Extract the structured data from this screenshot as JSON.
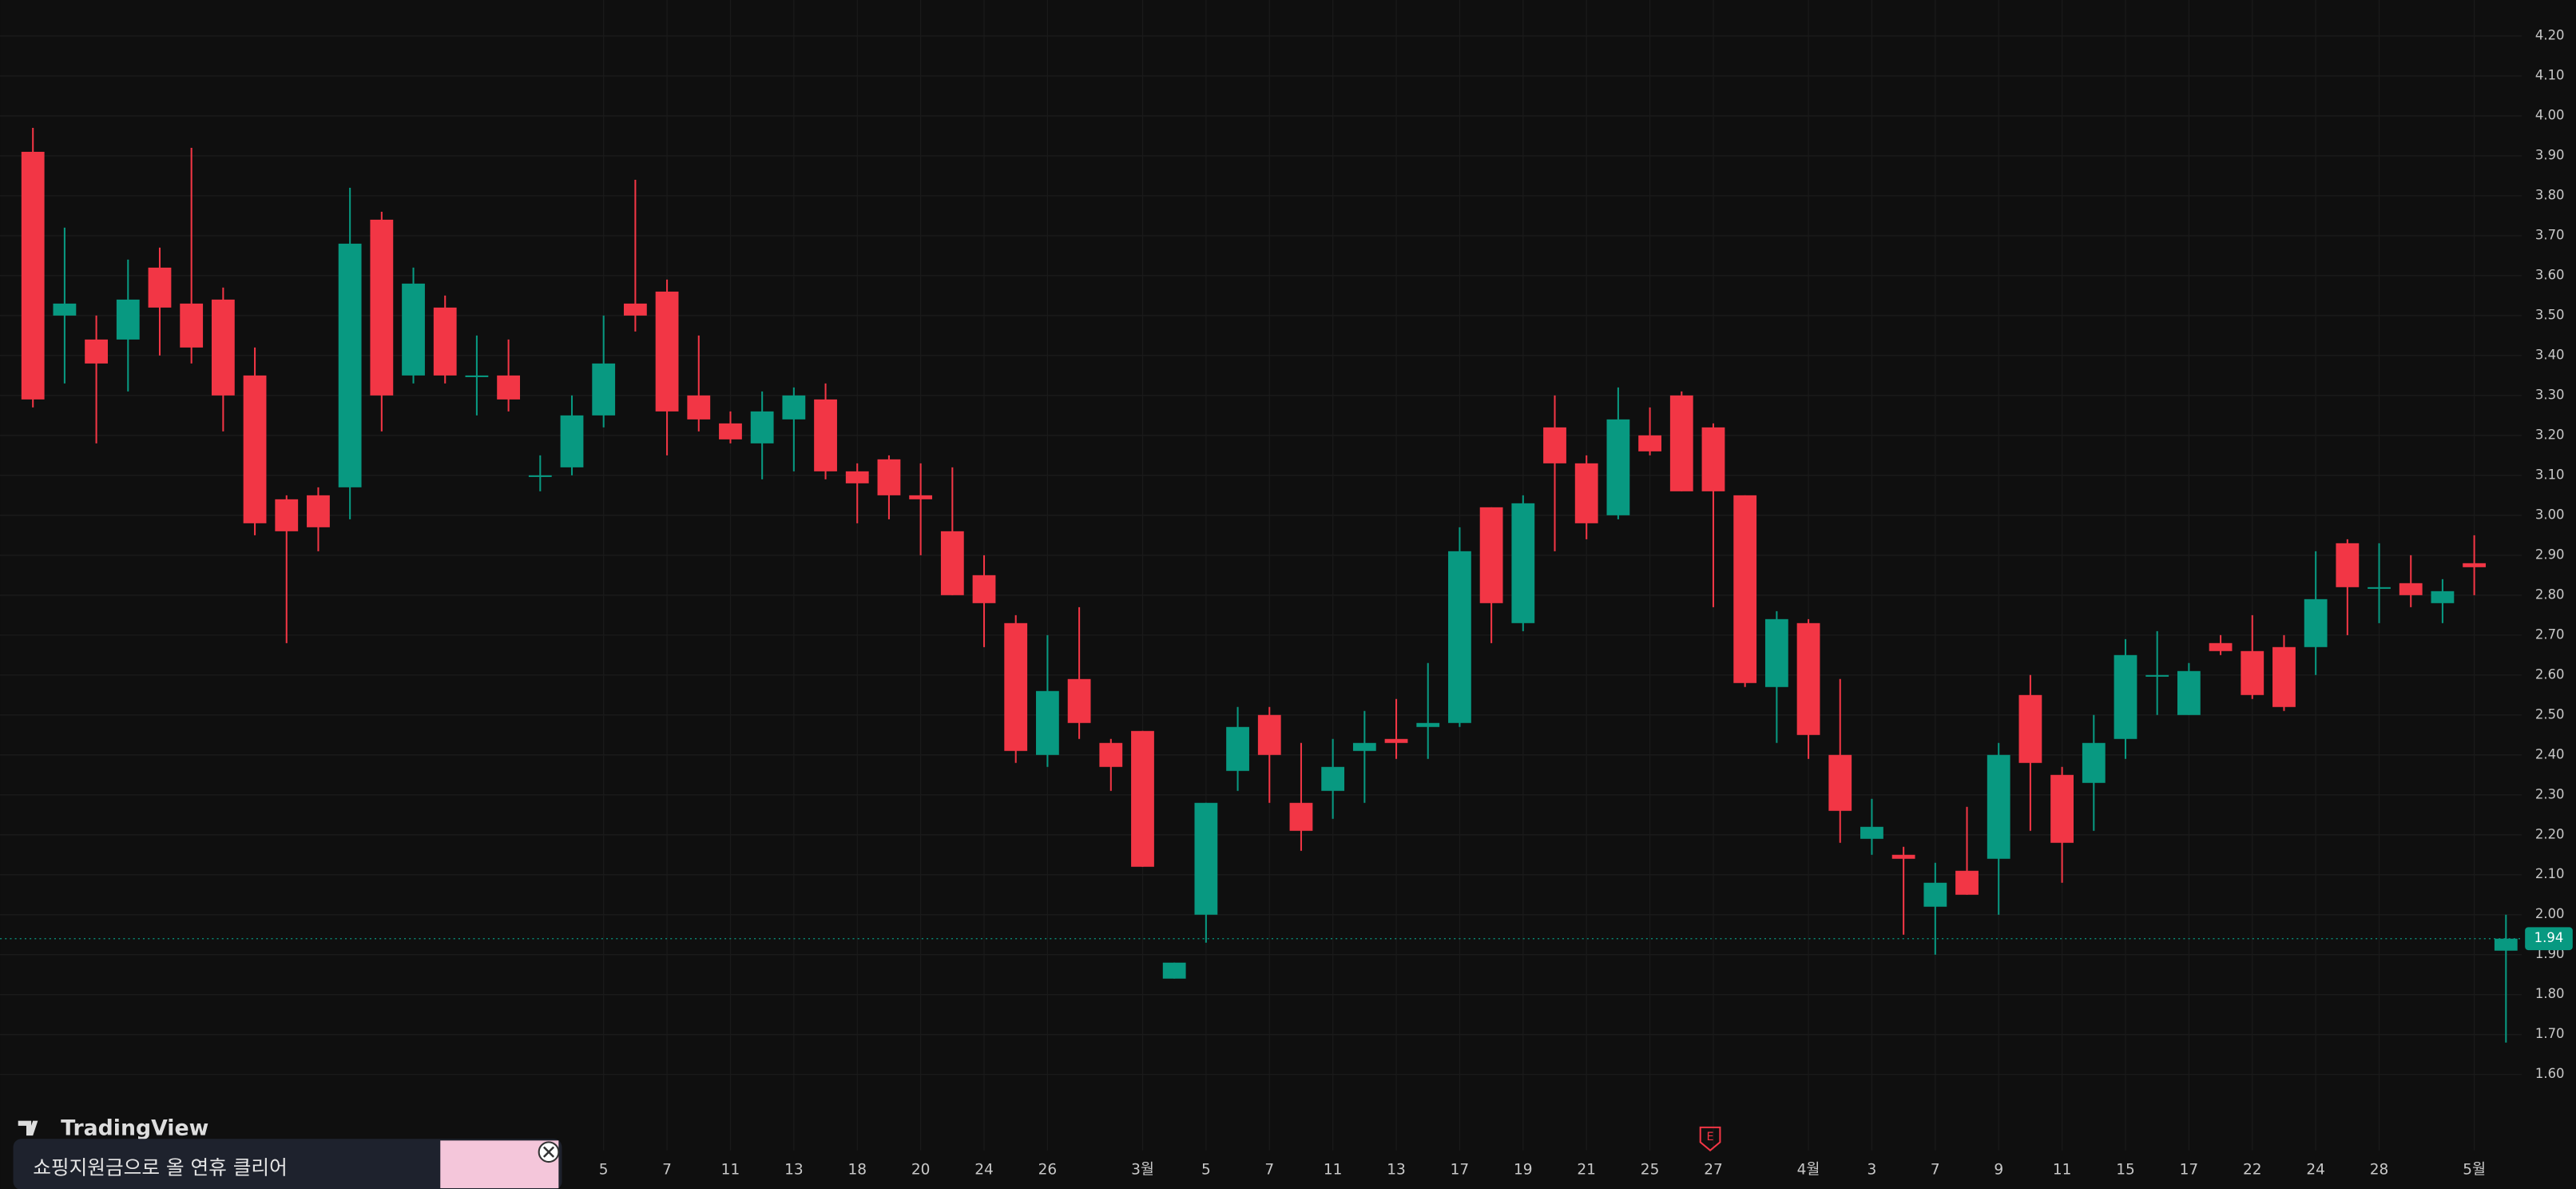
{
  "chart_data": {
    "type": "candlestick",
    "categories": [
      null,
      null,
      null,
      null,
      null,
      null,
      null,
      null,
      null,
      null,
      null,
      null,
      null,
      null,
      null,
      null,
      null,
      null,
      "5",
      null,
      "7",
      null,
      "11",
      null,
      "13",
      null,
      "18",
      null,
      "20",
      null,
      "24",
      null,
      "26",
      null,
      null,
      "3월",
      null,
      "5",
      null,
      "7",
      null,
      "11",
      null,
      "13",
      null,
      "17",
      null,
      "19",
      null,
      "21",
      null,
      "25",
      null,
      "27",
      null,
      null,
      "4월",
      null,
      "3",
      null,
      "7",
      null,
      "9",
      null,
      "11",
      null,
      "15",
      null,
      "17",
      null,
      "22",
      null,
      "24",
      null,
      "28",
      null,
      null,
      "5월",
      null
    ],
    "open": [
      3.91,
      3.5,
      3.44,
      3.44,
      3.62,
      3.53,
      3.54,
      3.35,
      3.04,
      3.05,
      3.07,
      3.74,
      3.35,
      3.52,
      3.35,
      3.35,
      3.1,
      3.12,
      3.25,
      3.53,
      3.56,
      3.3,
      3.23,
      3.18,
      3.24,
      3.29,
      3.11,
      3.14,
      3.05,
      2.96,
      2.85,
      2.73,
      2.4,
      2.59,
      2.43,
      2.46,
      1.84,
      2.0,
      2.36,
      2.5,
      2.28,
      2.31,
      2.41,
      2.44,
      2.47,
      2.48,
      3.02,
      2.73,
      3.22,
      3.13,
      3.0,
      3.2,
      3.3,
      3.22,
      3.05,
      2.57,
      2.73,
      2.4,
      2.19,
      2.15,
      2.02,
      2.11,
      2.14,
      2.55,
      2.35,
      2.33,
      2.44,
      2.6,
      2.5,
      2.68,
      2.66,
      2.67,
      2.67,
      2.93,
      2.82,
      2.83,
      2.78,
      2.88,
      1.91
    ],
    "high": [
      3.97,
      3.72,
      3.5,
      3.64,
      3.67,
      3.92,
      3.57,
      3.42,
      3.05,
      3.07,
      3.82,
      3.76,
      3.62,
      3.55,
      3.45,
      3.44,
      3.15,
      3.3,
      3.5,
      3.84,
      3.59,
      3.45,
      3.26,
      3.31,
      3.32,
      3.33,
      3.13,
      3.15,
      3.13,
      3.12,
      2.9,
      2.75,
      2.7,
      2.77,
      2.44,
      2.46,
      1.88,
      2.28,
      2.52,
      2.52,
      2.43,
      2.44,
      2.51,
      2.54,
      2.63,
      2.97,
      3.02,
      3.05,
      3.3,
      3.15,
      3.32,
      3.27,
      3.31,
      3.23,
      3.05,
      2.76,
      2.74,
      2.59,
      2.29,
      2.17,
      2.13,
      2.27,
      2.43,
      2.6,
      2.37,
      2.5,
      2.69,
      2.71,
      2.63,
      2.7,
      2.75,
      2.7,
      2.91,
      2.94,
      2.93,
      2.9,
      2.84,
      2.95,
      2.0
    ],
    "low": [
      3.27,
      3.33,
      3.18,
      3.31,
      3.4,
      3.38,
      3.21,
      2.95,
      2.68,
      2.91,
      2.99,
      3.21,
      3.33,
      3.33,
      3.25,
      3.26,
      3.06,
      3.1,
      3.22,
      3.46,
      3.15,
      3.21,
      3.18,
      3.09,
      3.11,
      3.09,
      2.98,
      2.99,
      2.9,
      2.8,
      2.67,
      2.38,
      2.37,
      2.44,
      2.31,
      2.12,
      1.84,
      1.93,
      2.31,
      2.28,
      2.16,
      2.24,
      2.28,
      2.39,
      2.39,
      2.47,
      2.68,
      2.71,
      2.91,
      2.94,
      2.99,
      3.15,
      3.06,
      2.77,
      2.57,
      2.43,
      2.39,
      2.18,
      2.15,
      1.95,
      1.9,
      2.05,
      2.0,
      2.21,
      2.08,
      2.21,
      2.39,
      2.5,
      2.5,
      2.65,
      2.54,
      2.51,
      2.6,
      2.7,
      2.73,
      2.77,
      2.73,
      2.8,
      1.68
    ],
    "close": [
      3.29,
      3.53,
      3.38,
      3.54,
      3.52,
      3.42,
      3.3,
      2.98,
      2.96,
      2.97,
      3.68,
      3.3,
      3.58,
      3.35,
      3.35,
      3.29,
      3.1,
      3.25,
      3.38,
      3.5,
      3.26,
      3.24,
      3.19,
      3.26,
      3.3,
      3.11,
      3.08,
      3.05,
      3.04,
      2.8,
      2.78,
      2.41,
      2.56,
      2.48,
      2.37,
      2.12,
      1.88,
      2.28,
      2.47,
      2.4,
      2.21,
      2.37,
      2.43,
      2.43,
      2.48,
      2.91,
      2.78,
      3.03,
      3.13,
      2.98,
      3.24,
      3.16,
      3.06,
      3.06,
      2.58,
      2.74,
      2.45,
      2.26,
      2.22,
      2.14,
      2.08,
      2.05,
      2.4,
      2.38,
      2.18,
      2.43,
      2.65,
      2.6,
      2.61,
      2.66,
      2.55,
      2.52,
      2.79,
      2.82,
      2.82,
      2.8,
      2.81,
      2.87,
      1.94
    ],
    "up_color": "#089981",
    "down_color": "#f23645",
    "ylim": [
      1.41,
      4.29
    ],
    "yticks": [
      {
        "value": 1.6,
        "label": "1.60"
      },
      {
        "value": 1.7,
        "label": "1.70"
      },
      {
        "value": 1.8,
        "label": "1.80"
      },
      {
        "value": 1.9,
        "label": "1.90"
      },
      {
        "value": 2,
        "label": "2.00"
      },
      {
        "value": 2.1,
        "label": "2.10"
      },
      {
        "value": 2.2,
        "label": "2.20"
      },
      {
        "value": 2.3,
        "label": "2.30"
      },
      {
        "value": 2.4,
        "label": "2.40"
      },
      {
        "value": 2.5,
        "label": "2.50"
      },
      {
        "value": 2.6,
        "label": "2.60"
      },
      {
        "value": 2.7,
        "label": "2.70"
      },
      {
        "value": 2.8,
        "label": "2.80"
      },
      {
        "value": 2.9,
        "label": "2.90"
      },
      {
        "value": 3,
        "label": "3.00"
      },
      {
        "value": 3.1,
        "label": "3.10"
      },
      {
        "value": 3.2,
        "label": "3.20"
      },
      {
        "value": 3.3,
        "label": "3.30"
      },
      {
        "value": 3.4,
        "label": "3.40"
      },
      {
        "value": 3.5,
        "label": "3.50"
      },
      {
        "value": 3.6,
        "label": "3.60"
      },
      {
        "value": 3.7,
        "label": "3.70"
      },
      {
        "value": 3.8,
        "label": "3.80"
      },
      {
        "value": 3.9,
        "label": "3.90"
      },
      {
        "value": 4,
        "label": "4.00"
      },
      {
        "value": 4.1,
        "label": "4.10"
      },
      {
        "value": 4.2,
        "label": "4.20"
      }
    ],
    "grid": true,
    "earnings_label": "E"
  },
  "logo": "TradingView",
  "ad": {
    "text": "쇼핑지원금으로 올 연휴 클리어"
  }
}
